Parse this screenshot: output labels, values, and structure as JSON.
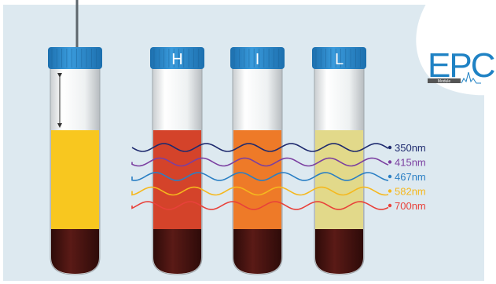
{
  "tubes": [
    {
      "id": "reference",
      "cap_label": "",
      "sample_color": "#F8C71F",
      "has_needle": true
    },
    {
      "id": "hemolysis",
      "cap_label": "H",
      "sample_color": "#D4432A",
      "has_needle": false
    },
    {
      "id": "icterus",
      "cap_label": "I",
      "sample_color": "#EE7A28",
      "has_needle": false
    },
    {
      "id": "lipemia",
      "cap_label": "L",
      "sample_color": "#E2D98A",
      "has_needle": false
    }
  ],
  "wavelengths": [
    {
      "label": "350nm",
      "color": "#1E2A6E"
    },
    {
      "label": "415nm",
      "color": "#7B3FA0"
    },
    {
      "label": "467nm",
      "color": "#2A7FC4"
    },
    {
      "label": "582nm",
      "color": "#F5B81E"
    },
    {
      "label": "700nm",
      "color": "#E8413A"
    }
  ],
  "logo": {
    "text": "EPC",
    "badge": "Module"
  },
  "colors": {
    "background": "#DDE9F0",
    "cap": "#2E8FD0",
    "blood": "#4A1512",
    "glass": "#F4F6F7",
    "logo_blue": "#1F82C4"
  }
}
